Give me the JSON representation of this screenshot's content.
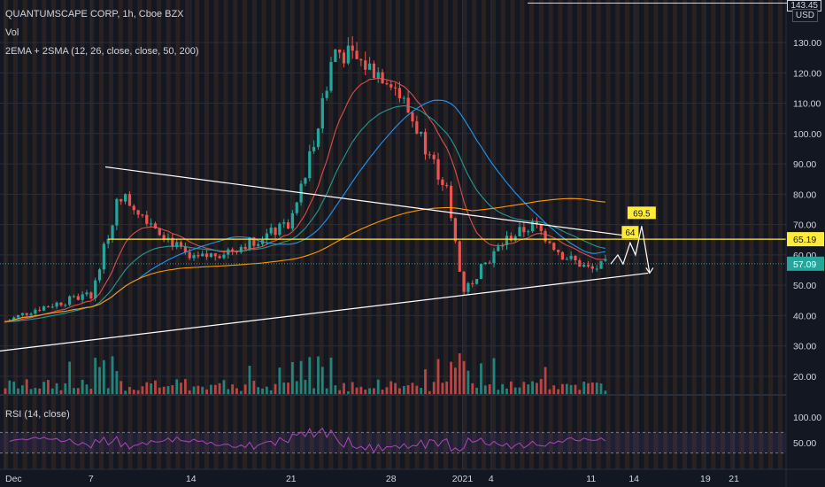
{
  "header": {
    "symbol_line": "QUANTUMSCAPE CORP, 1h, Cboe BZX",
    "vol_label": "Vol",
    "ma_label": "2EMA + 2SMA (12, 26, close, close, 50, 200)",
    "rsi_label": "RSI (14, close)",
    "currency": "USD",
    "top_cut_label": "143.45"
  },
  "colors": {
    "background": "#131722",
    "grid": "#2a2e39",
    "session_bg": "#3a2a1e",
    "candle_up": "#26a69a",
    "candle_down": "#ef5350",
    "ema12": "#ef5350",
    "ema26": "#26a69a",
    "sma50": "#2196f3",
    "sma200": "#ff9800",
    "hline": "#ffeb3b",
    "trend": "#ffffff",
    "rsi": "#ab47bc",
    "label_last": "#26a69a"
  },
  "chart_data": {
    "type": "candlestick",
    "symbol": "QUANTUMSCAPE CORP",
    "timeframe": "1h",
    "exchange": "Cboe BZX",
    "currency": "USD",
    "x_ticks": [
      "Dec",
      "7",
      "14",
      "21",
      "28",
      "2021",
      "4",
      "11",
      "14",
      "19",
      "21"
    ],
    "price_ticks": [
      "130.00",
      "120.00",
      "110.00",
      "100.00",
      "90.00",
      "80.00",
      "70.00",
      "60.00",
      "50.00",
      "40.00",
      "30.00",
      "20.00"
    ],
    "rsi_ticks": [
      "100.00",
      "50.00"
    ],
    "price_range": [
      12,
      142
    ],
    "price_close_approx": [
      {
        "day": "Dec 1",
        "close": 38
      },
      {
        "day": "Dec 3",
        "close": 42
      },
      {
        "day": "Dec 7",
        "close": 47
      },
      {
        "day": "Dec 9",
        "close": 80
      },
      {
        "day": "Dec 11",
        "close": 72
      },
      {
        "day": "Dec 14",
        "close": 58
      },
      {
        "day": "Dec 17",
        "close": 62
      },
      {
        "day": "Dec 21",
        "close": 70
      },
      {
        "day": "Dec 23",
        "close": 105
      },
      {
        "day": "Dec 24",
        "close": 128
      },
      {
        "day": "Dec 28",
        "close": 118
      },
      {
        "day": "Dec 30",
        "close": 100
      },
      {
        "day": "Jan 1",
        "close": 80
      },
      {
        "day": "Jan 2",
        "close": 48
      },
      {
        "day": "Jan 5",
        "close": 65
      },
      {
        "day": "Jan 7",
        "close": 70
      },
      {
        "day": "Jan 9",
        "close": 60
      },
      {
        "day": "Jan 11",
        "close": 55
      },
      {
        "day": "Jan 12",
        "close": 57
      }
    ],
    "series": [
      {
        "name": "EMA 12"
      },
      {
        "name": "EMA 26"
      },
      {
        "name": "SMA 50"
      },
      {
        "name": "SMA 200"
      }
    ],
    "horizontal_lines": [
      {
        "value": 65.19,
        "label": "65.19"
      }
    ],
    "last_price": {
      "value": 57.09,
      "label": "57.09"
    },
    "annotations": [
      {
        "text": "64",
        "value": 64
      },
      {
        "text": "69.5",
        "value": 69.5
      }
    ],
    "trendlines": [
      {
        "from": {
          "day": "Dec 8",
          "value": 89
        },
        "to": {
          "day": "Jan 14",
          "value": 66
        }
      },
      {
        "from": {
          "day": "Nov 30",
          "value": 28
        },
        "to": {
          "day": "Jan 15",
          "value": 54
        }
      }
    ],
    "rsi": {
      "label": "RSI (14, close)",
      "upper_band": 70,
      "lower_band": 30
    },
    "grid": true
  }
}
